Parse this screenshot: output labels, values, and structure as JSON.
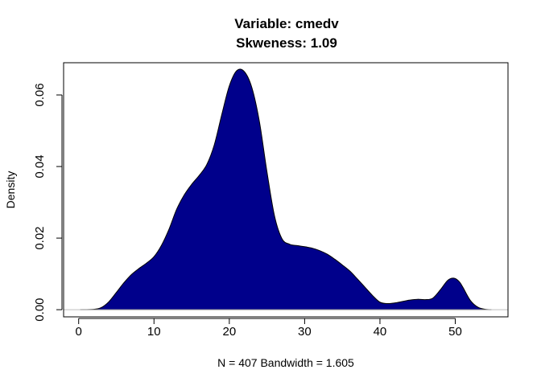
{
  "chart_data": {
    "type": "area",
    "title": "Variable: cmedv",
    "subtitle": "Skweness: 1.09",
    "xlabel": "N = 407   Bandwidth = 1.605",
    "ylabel": "Density",
    "xlim": [
      -2,
      57
    ],
    "ylim": [
      -0.002,
      0.069
    ],
    "x_ticks": [
      0,
      10,
      20,
      30,
      40,
      50
    ],
    "y_ticks": [
      0.0,
      0.02,
      0.04,
      0.06
    ],
    "y_tick_labels": [
      "0.00",
      "0.02",
      "0.04",
      "0.06"
    ],
    "fill_color": "#00008B",
    "baseline_color": "#BEBEBE",
    "grid": false,
    "points": [
      [
        0.2,
        0.0
      ],
      [
        2,
        0.0001
      ],
      [
        3,
        0.0006
      ],
      [
        4,
        0.0022
      ],
      [
        5,
        0.0048
      ],
      [
        6,
        0.0075
      ],
      [
        7,
        0.0098
      ],
      [
        8,
        0.0115
      ],
      [
        9,
        0.013
      ],
      [
        10,
        0.0148
      ],
      [
        11,
        0.018
      ],
      [
        12,
        0.0225
      ],
      [
        13,
        0.028
      ],
      [
        14,
        0.032
      ],
      [
        15,
        0.035
      ],
      [
        16,
        0.0375
      ],
      [
        17,
        0.0405
      ],
      [
        18,
        0.046
      ],
      [
        19,
        0.0545
      ],
      [
        20,
        0.0625
      ],
      [
        21,
        0.0668
      ],
      [
        22,
        0.0665
      ],
      [
        23,
        0.062
      ],
      [
        24,
        0.0525
      ],
      [
        25,
        0.0385
      ],
      [
        26,
        0.0262
      ],
      [
        27,
        0.0198
      ],
      [
        28,
        0.0183
      ],
      [
        29,
        0.0179
      ],
      [
        30,
        0.0176
      ],
      [
        31,
        0.0172
      ],
      [
        32,
        0.0165
      ],
      [
        33,
        0.0155
      ],
      [
        34,
        0.0141
      ],
      [
        35,
        0.0125
      ],
      [
        36,
        0.0108
      ],
      [
        37,
        0.0086
      ],
      [
        38,
        0.0063
      ],
      [
        39,
        0.004
      ],
      [
        40,
        0.0021
      ],
      [
        41,
        0.0017
      ],
      [
        42,
        0.0019
      ],
      [
        43,
        0.0023
      ],
      [
        44,
        0.0027
      ],
      [
        45,
        0.0029
      ],
      [
        46,
        0.0028
      ],
      [
        47,
        0.0032
      ],
      [
        48,
        0.0055
      ],
      [
        49,
        0.0082
      ],
      [
        49.8,
        0.0088
      ],
      [
        50.5,
        0.0079
      ],
      [
        51,
        0.0063
      ],
      [
        52,
        0.0026
      ],
      [
        53,
        0.0007
      ],
      [
        54,
        0.0001
      ],
      [
        54.8,
        0.0
      ]
    ]
  }
}
